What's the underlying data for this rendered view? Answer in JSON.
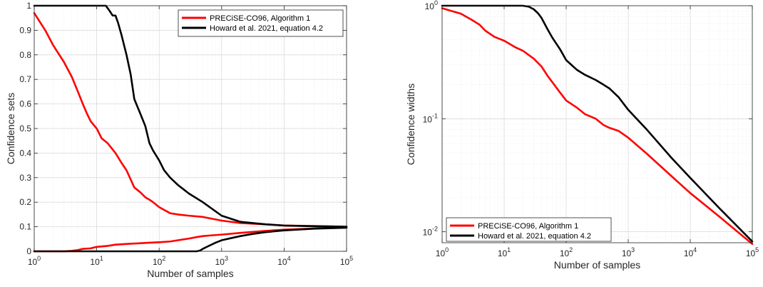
{
  "chart_data": [
    {
      "type": "line",
      "xlabel": "Number of samples",
      "ylabel": "Confidence sets",
      "xscale": "log",
      "yscale": "linear",
      "xlim": [
        1,
        100000
      ],
      "ylim": [
        0,
        1
      ],
      "xticks": [
        {
          "v": 1,
          "base": "10",
          "exp": "0"
        },
        {
          "v": 10,
          "base": "10",
          "exp": "1"
        },
        {
          "v": 100,
          "base": "10",
          "exp": "2"
        },
        {
          "v": 1000,
          "base": "10",
          "exp": "3"
        },
        {
          "v": 10000,
          "base": "10",
          "exp": "4"
        },
        {
          "v": 100000,
          "base": "10",
          "exp": "5"
        }
      ],
      "yticks": [
        {
          "v": 0,
          "label": "0"
        },
        {
          "v": 0.1,
          "label": "0.1"
        },
        {
          "v": 0.2,
          "label": "0.2"
        },
        {
          "v": 0.3,
          "label": "0.3"
        },
        {
          "v": 0.4,
          "label": "0.4"
        },
        {
          "v": 0.5,
          "label": "0.5"
        },
        {
          "v": 0.6,
          "label": "0.6"
        },
        {
          "v": 0.7,
          "label": "0.7"
        },
        {
          "v": 0.8,
          "label": "0.8"
        },
        {
          "v": 0.9,
          "label": "0.9"
        },
        {
          "v": 1,
          "label": "1"
        }
      ],
      "grid": true,
      "legend_position": "top-right",
      "legend": [
        {
          "name": "PRECiSE-CO96, Algorithm 1",
          "color": "#ff0000"
        },
        {
          "name": "Howard et al. 2021, equation 4.2",
          "color": "#000000"
        }
      ],
      "series": [
        {
          "name": "PRECiSE-CO96, Algorithm 1 (upper)",
          "color": "#ff0000",
          "x": [
            1,
            1.5,
            2,
            3,
            4,
            5,
            6,
            7,
            8,
            10,
            12,
            15,
            20,
            25,
            30,
            40,
            50,
            60,
            70,
            80,
            100,
            150,
            200,
            300,
            500,
            1000,
            2000,
            5000,
            10000,
            30000,
            100000
          ],
          "y": [
            0.97,
            0.9,
            0.84,
            0.77,
            0.71,
            0.65,
            0.6,
            0.56,
            0.53,
            0.5,
            0.46,
            0.44,
            0.4,
            0.36,
            0.33,
            0.26,
            0.24,
            0.22,
            0.21,
            0.2,
            0.18,
            0.155,
            0.15,
            0.145,
            0.14,
            0.125,
            0.115,
            0.11,
            0.105,
            0.103,
            0.1
          ]
        },
        {
          "name": "PRECiSE-CO96, Algorithm 1 (lower)",
          "color": "#ff0000",
          "x": [
            1,
            2,
            3,
            4,
            5,
            6,
            8,
            10,
            15,
            20,
            30,
            50,
            70,
            100,
            150,
            200,
            300,
            400,
            500,
            700,
            1000,
            2000,
            5000,
            10000,
            30000,
            100000
          ],
          "y": [
            0,
            0,
            0,
            0.002,
            0.005,
            0.01,
            0.012,
            0.018,
            0.022,
            0.027,
            0.03,
            0.033,
            0.035,
            0.037,
            0.04,
            0.045,
            0.052,
            0.058,
            0.062,
            0.065,
            0.068,
            0.075,
            0.083,
            0.088,
            0.093,
            0.098
          ]
        },
        {
          "name": "Howard et al. 2021, equation 4.2 (upper)",
          "color": "#000000",
          "x": [
            1,
            10,
            14,
            16,
            18,
            20,
            22,
            25,
            28,
            30,
            35,
            40,
            50,
            60,
            70,
            80,
            100,
            120,
            150,
            200,
            300,
            500,
            1000,
            2000,
            5000,
            10000,
            30000,
            100000
          ],
          "y": [
            1,
            1,
            1,
            0.98,
            0.96,
            0.96,
            0.93,
            0.88,
            0.83,
            0.8,
            0.72,
            0.62,
            0.56,
            0.51,
            0.44,
            0.41,
            0.37,
            0.33,
            0.3,
            0.27,
            0.235,
            0.2,
            0.145,
            0.12,
            0.11,
            0.105,
            0.102,
            0.1
          ]
        },
        {
          "name": "Howard et al. 2021, equation 4.2 (lower)",
          "color": "#000000",
          "x": [
            1,
            100,
            300,
            400,
            450,
            500,
            600,
            800,
            1000,
            1500,
            2000,
            3000,
            5000,
            10000,
            30000,
            100000
          ],
          "y": [
            0,
            0,
            0,
            0,
            0.003,
            0.01,
            0.02,
            0.035,
            0.045,
            0.055,
            0.062,
            0.07,
            0.078,
            0.085,
            0.092,
            0.096
          ]
        }
      ]
    },
    {
      "type": "line",
      "xlabel": "Number of samples",
      "ylabel": "Confidence widths",
      "xscale": "log",
      "yscale": "log",
      "xlim": [
        1,
        100000
      ],
      "ylim": [
        0.008,
        1
      ],
      "xticks": [
        {
          "v": 1,
          "base": "10",
          "exp": "0"
        },
        {
          "v": 10,
          "base": "10",
          "exp": "1"
        },
        {
          "v": 100,
          "base": "10",
          "exp": "2"
        },
        {
          "v": 1000,
          "base": "10",
          "exp": "3"
        },
        {
          "v": 10000,
          "base": "10",
          "exp": "4"
        },
        {
          "v": 100000,
          "base": "10",
          "exp": "5"
        }
      ],
      "yticks": [
        {
          "v": 1,
          "base": "10",
          "exp": "0"
        },
        {
          "v": 0.1,
          "base": "10",
          "exp": "-1"
        },
        {
          "v": 0.01,
          "base": "10",
          "exp": "-2"
        }
      ],
      "grid": true,
      "legend_position": "bottom-left",
      "legend": [
        {
          "name": "PRECiSE-CO96, Algorithm 1",
          "color": "#ff0000"
        },
        {
          "name": "Howard et al. 2021, equation 4.2",
          "color": "#000000"
        }
      ],
      "series": [
        {
          "name": "PRECiSE-CO96, Algorithm 1",
          "color": "#ff0000",
          "x": [
            1,
            2,
            3,
            4,
            5,
            7,
            10,
            15,
            20,
            30,
            40,
            50,
            60,
            80,
            100,
            150,
            200,
            300,
            400,
            500,
            700,
            1000,
            2000,
            5000,
            10000,
            30000,
            100000
          ],
          "y": [
            0.95,
            0.85,
            0.75,
            0.68,
            0.6,
            0.53,
            0.49,
            0.43,
            0.4,
            0.34,
            0.29,
            0.24,
            0.21,
            0.17,
            0.145,
            0.125,
            0.11,
            0.1,
            0.088,
            0.083,
            0.078,
            0.068,
            0.049,
            0.031,
            0.022,
            0.0135,
            0.0078
          ]
        },
        {
          "name": "Howard et al. 2021, equation 4.2",
          "color": "#000000",
          "x": [
            1,
            10,
            20,
            25,
            30,
            35,
            40,
            50,
            60,
            80,
            100,
            150,
            200,
            300,
            400,
            500,
            700,
            1000,
            2000,
            5000,
            10000,
            30000,
            100000
          ],
          "y": [
            1,
            1,
            1,
            0.98,
            0.93,
            0.86,
            0.78,
            0.62,
            0.52,
            0.41,
            0.33,
            0.27,
            0.245,
            0.22,
            0.2,
            0.185,
            0.155,
            0.12,
            0.08,
            0.045,
            0.03,
            0.016,
            0.0082
          ]
        }
      ]
    }
  ]
}
